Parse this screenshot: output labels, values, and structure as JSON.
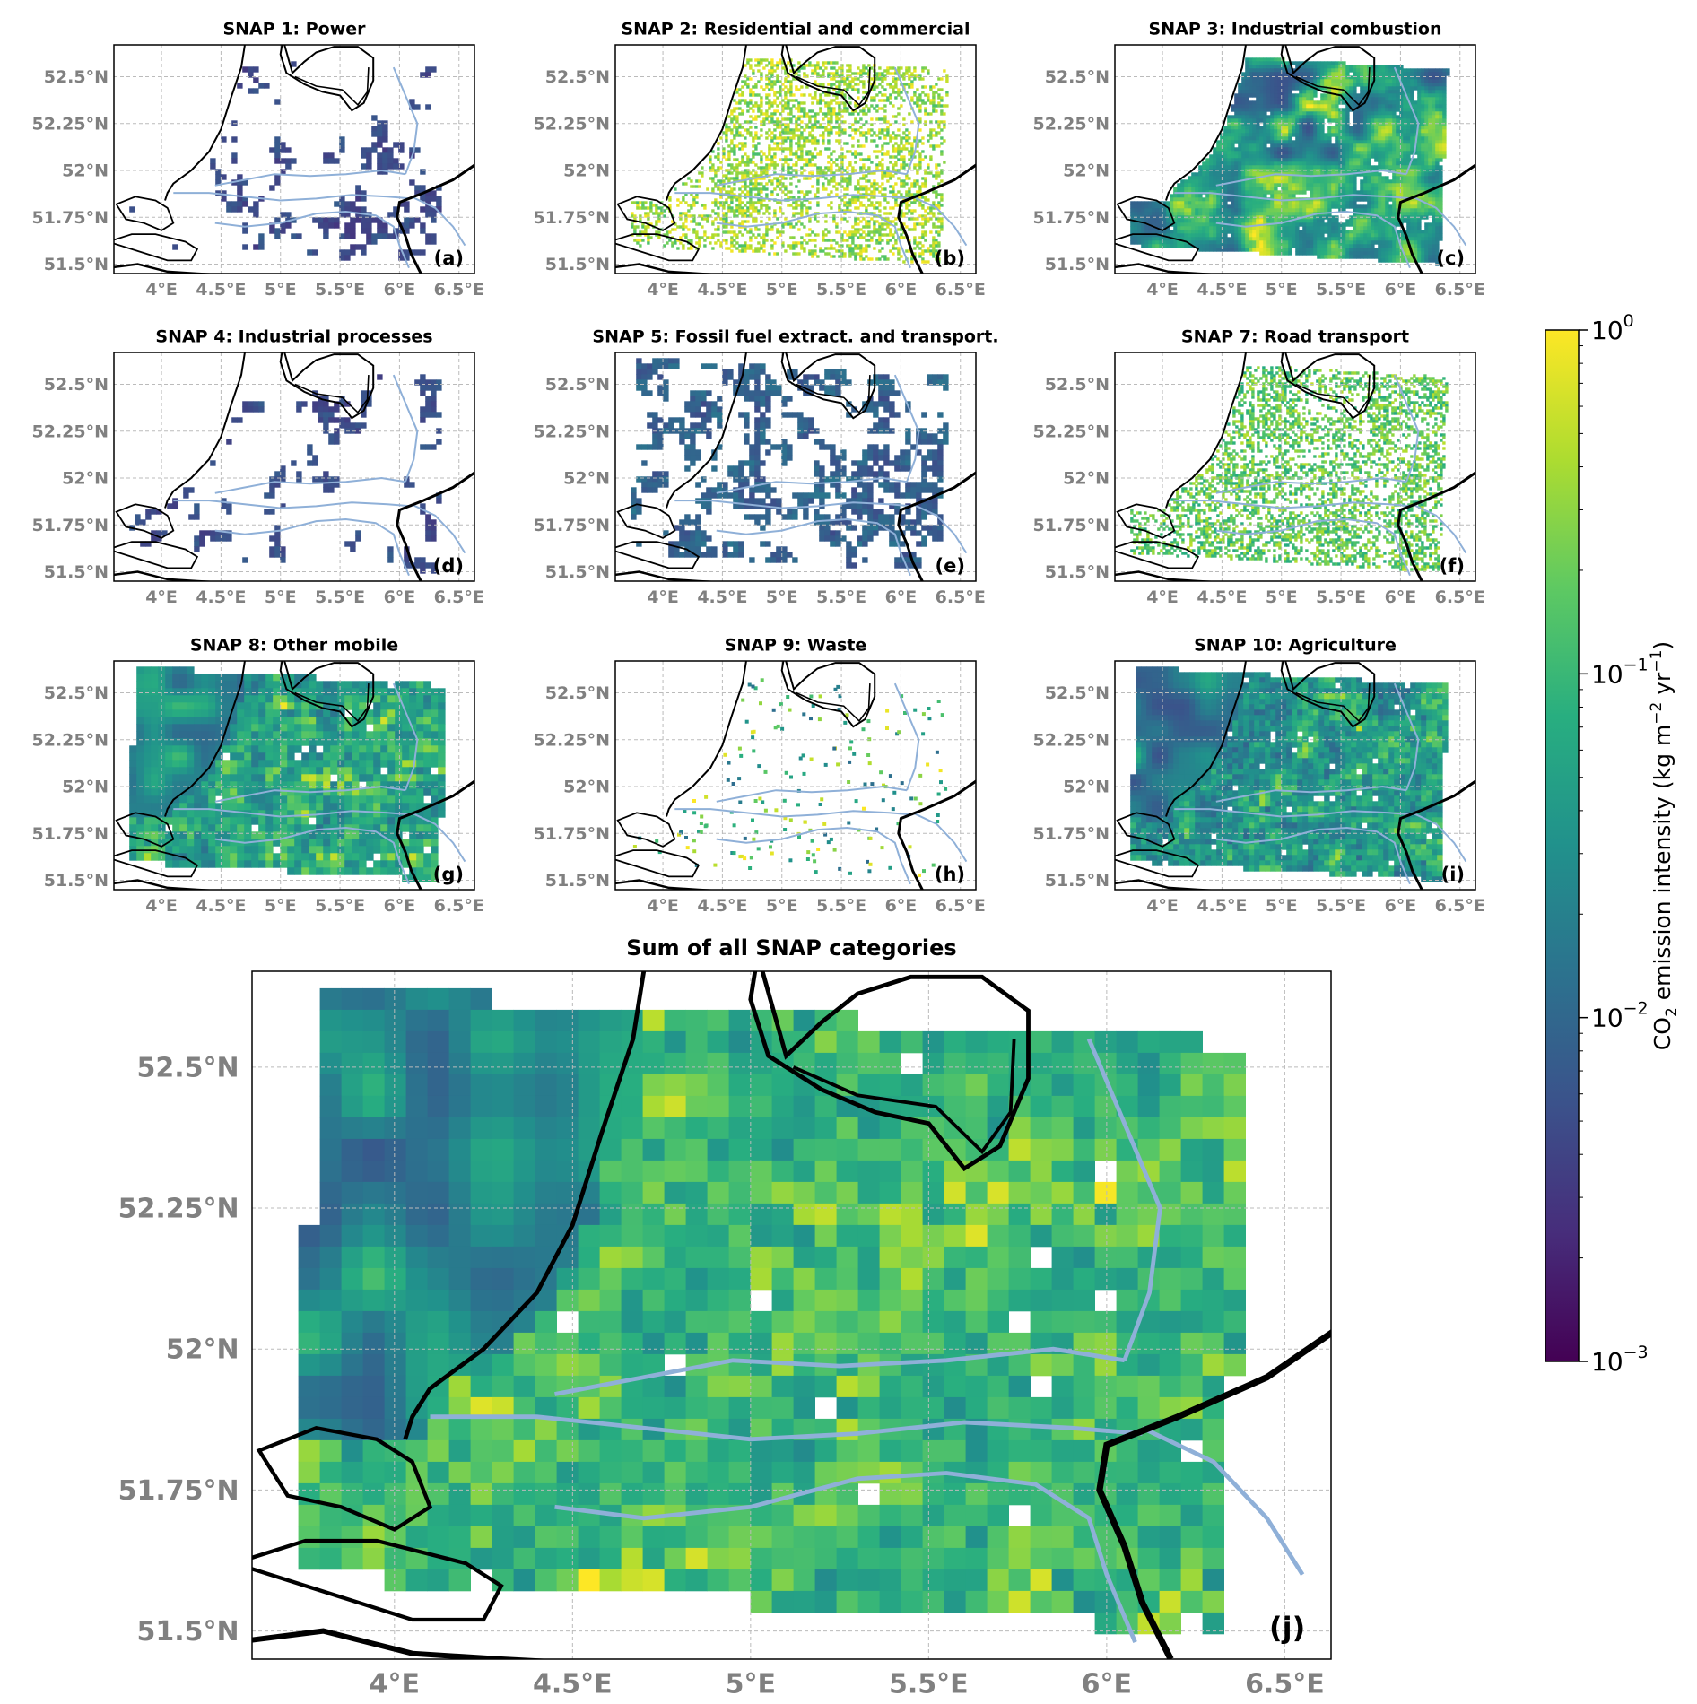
{
  "figure": {
    "panels": [
      {
        "id": "a",
        "title": "SNAP 1: Power",
        "letter": "(a)",
        "pattern": "sparse",
        "base": 0.05,
        "density": 0.28,
        "grain": 6
      },
      {
        "id": "b",
        "title": "SNAP 2: Residential and commercial",
        "letter": "(b)",
        "pattern": "speckle",
        "base": 0.85,
        "density": 0.45,
        "grain": 3
      },
      {
        "id": "c",
        "title": "SNAP 3: Industrial combustion",
        "letter": "(c)",
        "pattern": "dense",
        "base": 0.45,
        "density": 0.88,
        "grain": 4
      },
      {
        "id": "d",
        "title": "SNAP 4: Industrial processes",
        "letter": "(d)",
        "pattern": "sparse",
        "base": 0.05,
        "density": 0.22,
        "grain": 6
      },
      {
        "id": "e",
        "title": "SNAP 5: Fossil fuel extract. and transport.",
        "letter": "(e)",
        "pattern": "sparse",
        "base": 0.15,
        "density": 0.55,
        "grain": 6
      },
      {
        "id": "f",
        "title": "SNAP 7: Road transport",
        "letter": "(f)",
        "pattern": "speckle",
        "base": 0.75,
        "density": 0.5,
        "grain": 3
      },
      {
        "id": "g",
        "title": "SNAP 8: Other mobile",
        "letter": "(g)",
        "pattern": "full",
        "base": 0.6,
        "density": 1.0,
        "grain": 8
      },
      {
        "id": "h",
        "title": "SNAP 9: Waste",
        "letter": "(h)",
        "pattern": "points",
        "base": 0.55,
        "density": 0.012,
        "grain": 6
      },
      {
        "id": "i",
        "title": "SNAP 10: Agriculture",
        "letter": "(i)",
        "pattern": "full",
        "base": 0.5,
        "density": 1.0,
        "grain": 6
      }
    ],
    "summary_panel": {
      "id": "j",
      "title": "Sum of all SNAP categories",
      "letter": "(j)",
      "pattern": "full",
      "base": 0.75,
      "density": 1.0,
      "grain": 10
    },
    "lat_ticks": [
      "51.5°N",
      "51.75°N",
      "52°N",
      "52.25°N",
      "52.5°N"
    ],
    "lon_ticks": [
      "4°E",
      "4.5°E",
      "5°E",
      "5.5°E",
      "6°E",
      "6.5°E"
    ],
    "lat_values": [
      51.5,
      51.75,
      52.0,
      52.25,
      52.5
    ],
    "lon_values": [
      4.0,
      4.5,
      5.0,
      5.5,
      6.0,
      6.5
    ],
    "extent": {
      "lon_min": 3.6,
      "lon_max": 6.63,
      "lat_min": 51.45,
      "lat_max": 52.67
    },
    "colorbar": {
      "colormap": "viridis",
      "scale": "log",
      "range": [
        0.001,
        1
      ],
      "ticks": [
        {
          "base": "10",
          "exp": "0",
          "value": 1
        },
        {
          "base": "10",
          "exp": "−1",
          "value": 0.1
        },
        {
          "base": "10",
          "exp": "−2",
          "value": 0.01
        },
        {
          "base": "10",
          "exp": "−3",
          "value": 0.001
        }
      ],
      "label_parts": [
        "CO",
        "2",
        " emission intensity (kg m",
        "−2",
        " yr",
        "−1",
        ")"
      ]
    },
    "colors": {
      "coastline": "#000000",
      "rivers": "#8fb0d8",
      "grid": "#bbbbbb",
      "tick_labels": "#808080"
    }
  }
}
